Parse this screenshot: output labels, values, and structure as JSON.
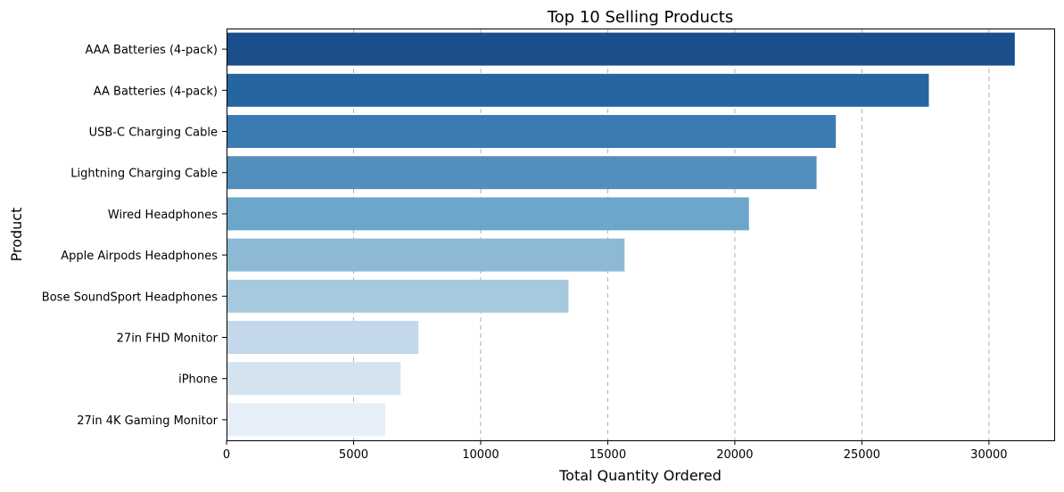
{
  "chart_data": {
    "type": "bar",
    "orientation": "horizontal",
    "title": "Top 10 Selling Products",
    "xlabel": "Total Quantity Ordered",
    "ylabel": "Product",
    "categories": [
      "AAA Batteries (4-pack)",
      "AA Batteries (4-pack)",
      "USB-C Charging Cable",
      "Lightning Charging Cable",
      "Wired Headphones",
      "Apple Airpods Headphones",
      "Bose SoundSport Headphones",
      "27in FHD Monitor",
      "iPhone",
      "27in 4K Gaming Monitor"
    ],
    "values": [
      31017,
      27635,
      23975,
      23217,
      20557,
      15661,
      13457,
      7550,
      6849,
      6244
    ],
    "xlim": [
      0,
      32567
    ],
    "xticks": [
      0,
      5000,
      10000,
      15000,
      20000,
      25000,
      30000
    ],
    "grid": "x-axis dashed",
    "colors": [
      "#1b4e8a",
      "#2565a1",
      "#3a7bb4",
      "#528fbc",
      "#6da6cb",
      "#8cbad4",
      "#a6c9df",
      "#c3d8ea",
      "#d4e3f0",
      "#e6eff8"
    ]
  }
}
